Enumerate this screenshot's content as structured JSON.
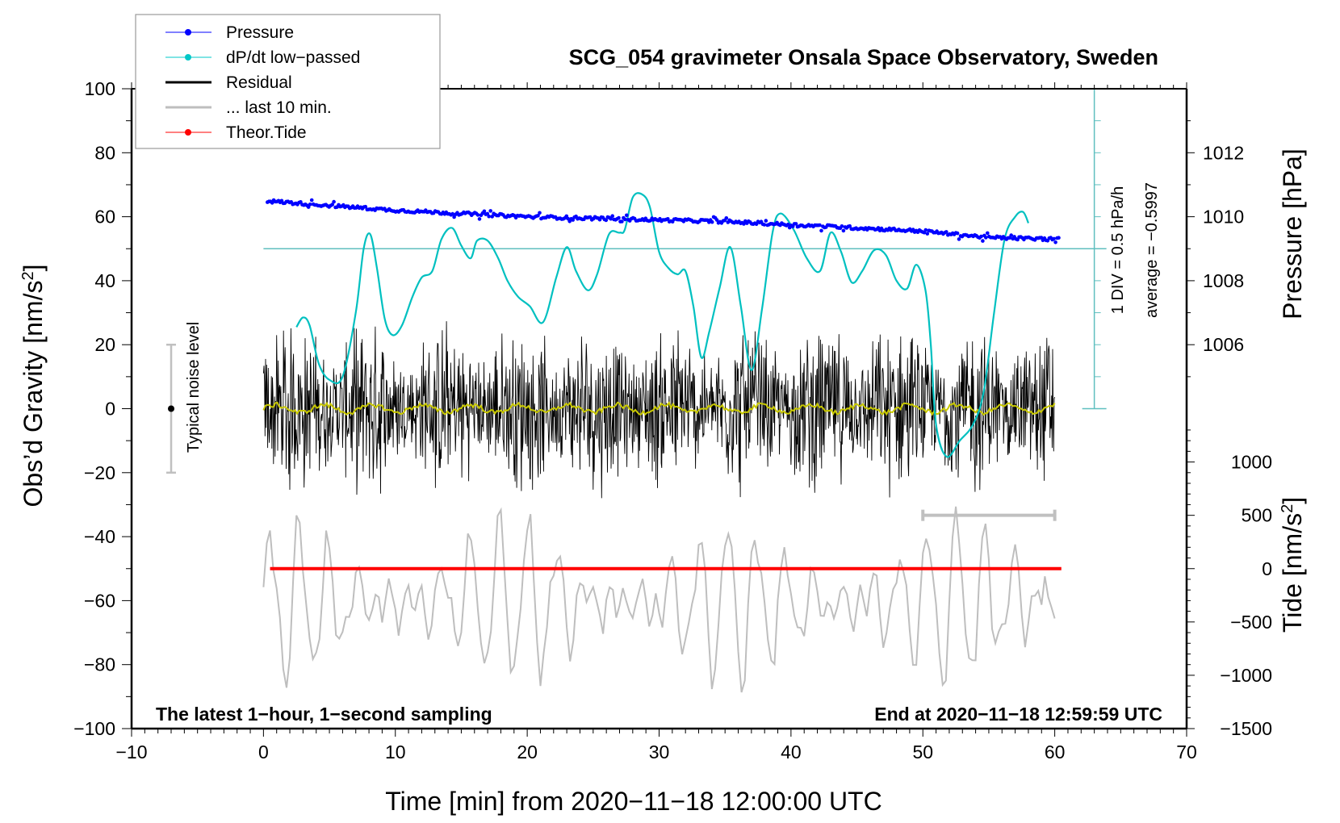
{
  "chart_data": {
    "type": "line",
    "title": "SCG_054 gravimeter Onsala Space Observatory, Sweden",
    "xlabel": "Time [min] from 2020−11−18 12:00:00 UTC",
    "ylabel_left": "Obs’d Gravity [nm/s²]",
    "ylabel_right_top": "Pressure [hPa]",
    "ylabel_right_bottom": "Tide [nm/s²]",
    "xlim": [
      -10,
      70
    ],
    "ylim_left": [
      -100,
      100
    ],
    "ylim_pressure": [
      1005,
      1014
    ],
    "ylim_tide": [
      -1500,
      1000
    ],
    "grid": false,
    "legend_position": "top-left",
    "x_ticks": [
      -10,
      0,
      10,
      20,
      30,
      40,
      50,
      60,
      70
    ],
    "x_tick_labels": [
      "−10",
      "0",
      "10",
      "20",
      "30",
      "40",
      "50",
      "60",
      "70"
    ],
    "y_left_ticks": [
      100,
      80,
      60,
      40,
      20,
      0,
      -20,
      -40,
      -60,
      -80,
      -100
    ],
    "y_left_tick_labels": [
      "100",
      "80",
      "60",
      "40",
      "20",
      "0",
      "−20",
      "−40",
      "−60",
      "−80",
      "−100"
    ],
    "pressure_ticks": [
      1012,
      1010,
      1008,
      1006
    ],
    "pressure_tick_labels": [
      "1012",
      "1010",
      "1008",
      "1006"
    ],
    "tide_ticks": [
      1000,
      500,
      0,
      -500,
      -1000,
      -1500
    ],
    "tide_tick_labels": [
      "1000",
      "500",
      "0",
      "−500",
      "−1000",
      "−1500"
    ],
    "legend": [
      {
        "label": "Pressure",
        "color": "#0000ff",
        "marker": "dot"
      },
      {
        "label": "dP/dt low−passed",
        "color": "#00c8c8",
        "marker": "dot"
      },
      {
        "label": "Residual",
        "color": "#000000",
        "marker": "none"
      },
      {
        "label": "... last 10 min.",
        "color": "#bebebe",
        "marker": "none"
      },
      {
        "label": "Theor.Tide",
        "color": "#ff0000",
        "marker": "dot"
      }
    ],
    "annotations": {
      "bottom_left": "The latest 1−hour, 1−second sampling",
      "bottom_right": "End at 2020−11−18 12:59:59 UTC",
      "noise_label": "Typical noise level",
      "dpdt_scale": "1 DIV = 0.5 hPa/h",
      "dpdt_average": "average = −0.5997"
    },
    "noise_bar": {
      "x": -7,
      "center": 0,
      "low": -20,
      "high": 20
    },
    "last10_bar": {
      "x_start": 50,
      "x_end": 60,
      "tide_value": 500
    },
    "series": [
      {
        "name": "Pressure",
        "axis": "pressure",
        "color": "#0000ff",
        "x": [
          0,
          5,
          10,
          15,
          20,
          25,
          30,
          35,
          40,
          45,
          50,
          55,
          60
        ],
        "values": [
          1010.5,
          1010.35,
          1010.2,
          1010.1,
          1010.0,
          1009.95,
          1009.9,
          1009.85,
          1009.75,
          1009.65,
          1009.55,
          1009.35,
          1009.3
        ],
        "scatter_spread_hpa": 0.1
      },
      {
        "name": "dP/dt low-passed",
        "axis": "left",
        "color": "#00c8c8",
        "baseline_left_units": 50,
        "x": [
          2.5,
          3,
          3.5,
          4.2,
          5,
          6,
          7,
          7.6,
          8.1,
          8.6,
          9.2,
          9.8,
          10.5,
          11.3,
          12,
          12.8,
          13.5,
          14.3,
          15,
          15.7,
          16.2,
          17,
          17.8,
          18.5,
          19.3,
          20.2,
          21.2,
          22.2,
          23,
          23.7,
          24.6,
          25.3,
          26.2,
          27,
          27.4,
          28,
          28.7,
          29.3,
          30,
          30.7,
          31.4,
          32,
          32.6,
          33.2,
          33.8,
          34.6,
          35.4,
          36.2,
          37,
          37.8,
          38.6,
          39.2,
          40.2,
          41.2,
          42.2,
          43,
          43.8,
          44.6,
          45.4,
          46.3,
          47.2,
          48,
          48.8,
          49.5,
          50.2,
          50.6,
          51,
          51.8,
          52.8,
          53.8,
          54.6,
          55.4,
          56.2,
          57,
          57.6,
          58
        ],
        "values": [
          25.5,
          28.5,
          26,
          14,
          9,
          10,
          30,
          50,
          54.5,
          44,
          28,
          23,
          26,
          35,
          41,
          43,
          53,
          56.5,
          51,
          47,
          52.5,
          52.5,
          47,
          40,
          35,
          32,
          27,
          41,
          50.5,
          43,
          37,
          42,
          54.5,
          55,
          56,
          66,
          67,
          63,
          49,
          44,
          42,
          43,
          32,
          16,
          24,
          38,
          50.5,
          32,
          12,
          31,
          55,
          61,
          56,
          47,
          43,
          55,
          49,
          39.5,
          43,
          49.5,
          48,
          40,
          37.5,
          45,
          37,
          20,
          -5,
          -15,
          -10,
          -5,
          5,
          30,
          53,
          60,
          61.5,
          58
        ]
      },
      {
        "name": "Residual",
        "axis": "left",
        "color": "#000000",
        "x_range": [
          0,
          60
        ],
        "typical_amplitude": 20,
        "min": -42,
        "max": 40
      },
      {
        "name": "Residual smoothed",
        "axis": "left",
        "color": "#c8c800",
        "x_range": [
          0,
          60
        ],
        "approx_value": 0
      },
      {
        "name": "... last 10 min.",
        "axis": "left",
        "color": "#bebebe",
        "x_range": [
          0,
          60
        ],
        "center": -60,
        "min": -98,
        "max": -25
      },
      {
        "name": "Theor.Tide",
        "axis": "tide",
        "color": "#ff0000",
        "x": [
          0.5,
          60.5
        ],
        "values": [
          0,
          0
        ]
      }
    ]
  }
}
